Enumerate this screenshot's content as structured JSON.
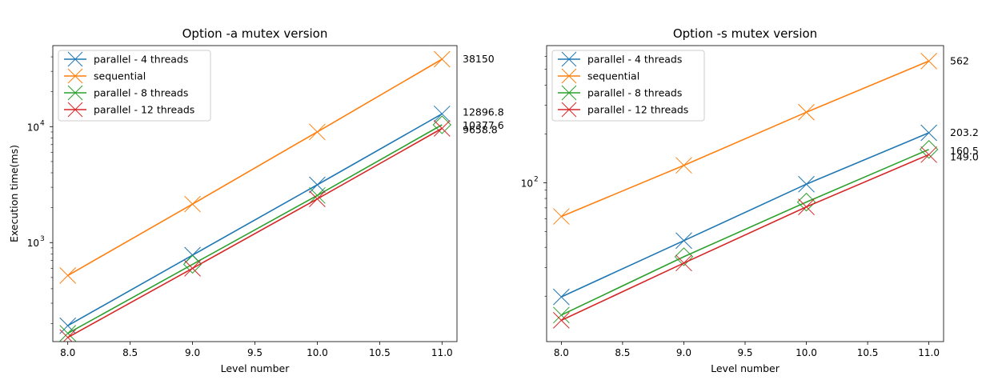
{
  "chart_data": [
    {
      "type": "line",
      "title": "Option -a mutex version",
      "xlabel": "Level number",
      "ylabel": "Execution time(ms)",
      "yscale": "log",
      "xlim": [
        7.88,
        11.12
      ],
      "ylim": [
        140,
        50000
      ],
      "xticks": [
        "8.0",
        "8.5",
        "9.0",
        "9.5",
        "10.0",
        "10.5",
        "11.0"
      ],
      "yticks": [
        {
          "value": 1000,
          "label": "10",
          "exp": "3"
        },
        {
          "value": 10000,
          "label": "10",
          "exp": "4"
        }
      ],
      "legend": "upper-left",
      "x": [
        8,
        9,
        10,
        11
      ],
      "series": [
        {
          "name": "parallel - 4 threads",
          "color": "#1f77b4",
          "values": [
            192,
            780,
            3150,
            12896.8
          ],
          "markers": [
            "x",
            "x",
            "x",
            "x"
          ]
        },
        {
          "name": "sequential",
          "color": "#ff7f0e",
          "values": [
            520,
            2150,
            9000,
            38150
          ],
          "markers": [
            "x",
            "x",
            "x",
            "x"
          ]
        },
        {
          "name": "parallel - 8 threads",
          "color": "#2ca02c",
          "values": [
            165,
            650,
            2550,
            10377.6
          ],
          "markers": [
            "x",
            "d",
            "x",
            "d"
          ]
        },
        {
          "name": "parallel - 12 threads",
          "color": "#d62728",
          "values": [
            152,
            600,
            2380,
            9658.8
          ],
          "markers": [
            "x",
            "x",
            "x",
            "x"
          ]
        }
      ],
      "end_labels": [
        "12896.8",
        "38150",
        "10377.6",
        "9658.8"
      ]
    },
    {
      "type": "line",
      "title": "Option -s mutex version",
      "xlabel": "Level number",
      "ylabel": "",
      "yscale": "log",
      "xlim": [
        7.88,
        11.12
      ],
      "ylim": [
        10.5,
        700
      ],
      "xticks": [
        "8.0",
        "8.5",
        "9.0",
        "9.5",
        "10.0",
        "10.5",
        "11.0"
      ],
      "yticks": [
        {
          "value": 100,
          "label": "10",
          "exp": "2"
        }
      ],
      "legend": "upper-left",
      "x": [
        8,
        9,
        10,
        11
      ],
      "series": [
        {
          "name": "parallel - 4 threads",
          "color": "#1f77b4",
          "values": [
            19.8,
            44,
            98,
            203.2
          ],
          "markers": [
            "x",
            "x",
            "x",
            "x"
          ]
        },
        {
          "name": "sequential",
          "color": "#ff7f0e",
          "values": [
            62,
            128,
            272,
            562
          ],
          "markers": [
            "x",
            "x",
            "x",
            "x"
          ]
        },
        {
          "name": "parallel - 8 threads",
          "color": "#2ca02c",
          "values": [
            15.3,
            35,
            76,
            160.5
          ],
          "markers": [
            "x",
            "d",
            "d",
            "d"
          ]
        },
        {
          "name": "parallel - 12 threads",
          "color": "#d62728",
          "values": [
            14.2,
            32,
            71,
            149.0
          ],
          "markers": [
            "x",
            "x",
            "x",
            "x"
          ]
        }
      ],
      "end_labels": [
        "203.2",
        "562",
        "160.5",
        "149.0"
      ]
    }
  ]
}
